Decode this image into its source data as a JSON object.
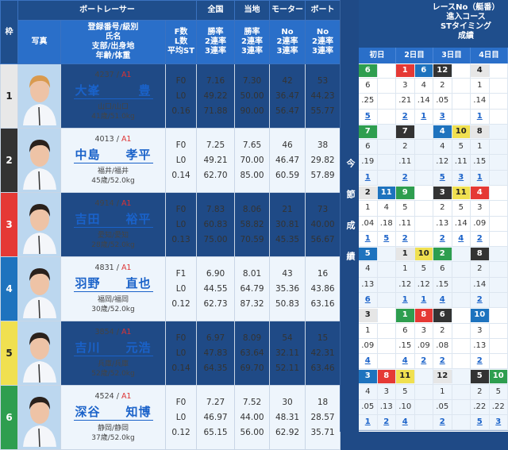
{
  "header": {
    "boat_racer": "ボートレーサー",
    "national": "全国",
    "local": "当地",
    "motor": "モーター",
    "boat": "ボート",
    "waku": "枠",
    "photo": "写真",
    "info_lines": [
      "登録番号/級別",
      "氏名",
      "支部/出身地",
      "年齢/体重"
    ],
    "fl_lines": [
      "F数",
      "L数",
      "平均ST"
    ],
    "rate_lines": [
      "勝率",
      "2連率",
      "3連率"
    ],
    "no_lines": [
      "No",
      "2連率",
      "3連率"
    ]
  },
  "middle_label": "今節成績",
  "results_header": {
    "lines": [
      "レースNo（艇番）",
      "進入コース",
      "STタイミング",
      "成績"
    ],
    "days": [
      "初日",
      "2日目",
      "3日目",
      "4日目"
    ]
  },
  "colors": {
    "1": "#e6e6e6",
    "2": "#333333",
    "3": "#e53935",
    "4": "#1e73be",
    "5": "#f0e050",
    "6": "#2e9e4f"
  },
  "racers": [
    {
      "waku": "1",
      "reg": "4237",
      "cls": "A1",
      "name": "大峯　　　豊",
      "branch": "山口/山口",
      "age_weight": "41歳/51.0kg",
      "fl": [
        "F0",
        "L0",
        "0.16"
      ],
      "national": [
        "7.16",
        "49.22",
        "71.88"
      ],
      "local": [
        "7.30",
        "50.00",
        "90.00"
      ],
      "motor": [
        "42",
        "36.47",
        "56.47"
      ],
      "boat": [
        "53",
        "44.23",
        "55.77"
      ],
      "results": {
        "race": [
          "6",
          "",
          "1",
          "6",
          "12",
          "",
          "4",
          ""
        ],
        "race_color": [
          "6",
          "",
          "3",
          "4",
          "2",
          "",
          "1",
          ""
        ],
        "course": [
          "6",
          "",
          "3",
          "4",
          "2",
          "",
          "1",
          ""
        ],
        "st": [
          ".25",
          "",
          ".21",
          ".14",
          ".05",
          "",
          ".14",
          ""
        ],
        "rank": [
          "5",
          "",
          "2",
          "1",
          "3",
          "",
          "1",
          ""
        ]
      }
    },
    {
      "waku": "2",
      "reg": "4013",
      "cls": "A1",
      "name": "中島　　孝平",
      "branch": "福井/福井",
      "age_weight": "45歳/52.0kg",
      "fl": [
        "F0",
        "L0",
        "0.14"
      ],
      "national": [
        "7.25",
        "49.21",
        "62.70"
      ],
      "local": [
        "7.65",
        "70.00",
        "85.00"
      ],
      "motor": [
        "46",
        "46.47",
        "60.59"
      ],
      "boat": [
        "38",
        "29.82",
        "57.89"
      ],
      "results": {
        "race": [
          "7",
          "",
          "7",
          "",
          "4",
          "10",
          "8",
          ""
        ],
        "race_color": [
          "6",
          "",
          "2",
          "",
          "4",
          "5",
          "1",
          ""
        ],
        "course": [
          "6",
          "",
          "2",
          "",
          "4",
          "5",
          "1",
          ""
        ],
        "st": [
          ".19",
          "",
          ".11",
          "",
          ".12",
          ".11",
          ".15",
          ""
        ],
        "rank": [
          "1",
          "",
          "2",
          "",
          "5",
          "3",
          "1",
          ""
        ]
      }
    },
    {
      "waku": "3",
      "reg": "4914",
      "cls": "A1",
      "name": "吉田　　裕平",
      "branch": "愛知/愛知",
      "age_weight": "28歳/52.0kg",
      "fl": [
        "F0",
        "L0",
        "0.13"
      ],
      "national": [
        "7.83",
        "60.83",
        "75.00"
      ],
      "local": [
        "8.06",
        "58.82",
        "70.59"
      ],
      "motor": [
        "21",
        "30.81",
        "45.35"
      ],
      "boat": [
        "73",
        "40.00",
        "56.67"
      ],
      "results": {
        "race": [
          "2",
          "11",
          "9",
          "",
          "3",
          "11",
          "4",
          ""
        ],
        "race_color": [
          "1",
          "4",
          "6",
          "",
          "2",
          "5",
          "3",
          ""
        ],
        "course": [
          "1",
          "4",
          "5",
          "",
          "2",
          "5",
          "3",
          ""
        ],
        "st": [
          ".04",
          ".18",
          ".11",
          "",
          ".13",
          ".14",
          ".09",
          ""
        ],
        "rank": [
          "1",
          "5",
          "2",
          "",
          "2",
          "4",
          "2",
          ""
        ]
      }
    },
    {
      "waku": "4",
      "reg": "4831",
      "cls": "A1",
      "name": "羽野　　直也",
      "branch": "福岡/福岡",
      "age_weight": "30歳/52.0kg",
      "fl": [
        "F1",
        "L0",
        "0.12"
      ],
      "national": [
        "6.90",
        "44.55",
        "62.73"
      ],
      "local": [
        "8.01",
        "64.79",
        "87.32"
      ],
      "motor": [
        "43",
        "35.36",
        "50.83"
      ],
      "boat": [
        "16",
        "43.86",
        "63.16"
      ],
      "results": {
        "race": [
          "5",
          "",
          "1",
          "10",
          "2",
          "",
          "8",
          ""
        ],
        "race_color": [
          "4",
          "",
          "1",
          "5",
          "6",
          "",
          "2",
          ""
        ],
        "course": [
          "4",
          "",
          "1",
          "5",
          "6",
          "",
          "2",
          ""
        ],
        "st": [
          ".13",
          "",
          ".12",
          ".12",
          ".15",
          "",
          ".14",
          ""
        ],
        "rank": [
          "6",
          "",
          "1",
          "1",
          "4",
          "",
          "2",
          ""
        ]
      }
    },
    {
      "waku": "5",
      "reg": "3854",
      "cls": "A1",
      "name": "吉川　　元浩",
      "branch": "兵庫/兵庫",
      "age_weight": "52歳/52.0kg",
      "fl": [
        "F0",
        "L0",
        "0.14"
      ],
      "national": [
        "6.97",
        "47.83",
        "64.35"
      ],
      "local": [
        "8.09",
        "63.64",
        "69.70"
      ],
      "motor": [
        "54",
        "32.11",
        "52.11"
      ],
      "boat": [
        "15",
        "42.31",
        "63.46"
      ],
      "results": {
        "race": [
          "3",
          "",
          "1",
          "8",
          "6",
          "",
          "10",
          ""
        ],
        "race_color": [
          "1",
          "",
          "6",
          "3",
          "2",
          "",
          "4",
          ""
        ],
        "course": [
          "1",
          "",
          "6",
          "3",
          "2",
          "",
          "3",
          ""
        ],
        "st": [
          ".09",
          "",
          ".15",
          ".09",
          ".08",
          "",
          ".13",
          ""
        ],
        "rank": [
          "4",
          "",
          "4",
          "2",
          "2",
          "",
          "2",
          ""
        ]
      }
    },
    {
      "waku": "6",
      "reg": "4524",
      "cls": "A1",
      "name": "深谷　　知博",
      "branch": "静岡/静岡",
      "age_weight": "37歳/52.0kg",
      "fl": [
        "F0",
        "L0",
        "0.12"
      ],
      "national": [
        "7.27",
        "46.97",
        "65.15"
      ],
      "local": [
        "7.52",
        "44.00",
        "56.00"
      ],
      "motor": [
        "30",
        "48.31",
        "62.92"
      ],
      "boat": [
        "18",
        "28.57",
        "35.71"
      ],
      "results": {
        "race": [
          "3",
          "8",
          "11",
          "",
          "12",
          "",
          "5",
          "10"
        ],
        "race_color": [
          "4",
          "3",
          "5",
          "",
          "1",
          "",
          "2",
          "6"
        ],
        "course": [
          "4",
          "3",
          "5",
          "",
          "1",
          "",
          "2",
          "5"
        ],
        "st": [
          ".05",
          ".13",
          ".10",
          "",
          ".05",
          "",
          ".22",
          ".22"
        ],
        "rank": [
          "1",
          "2",
          "4",
          "",
          "2",
          "",
          "5",
          "3"
        ]
      }
    }
  ]
}
